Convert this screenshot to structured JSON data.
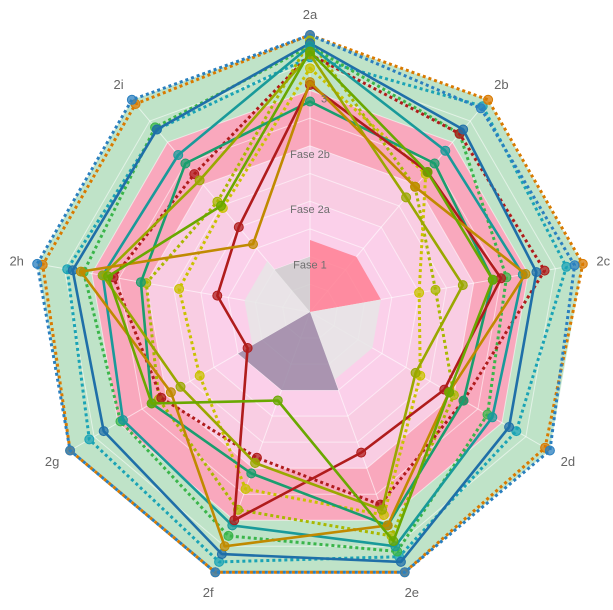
{
  "chart_data": {
    "type": "radar",
    "axes": [
      "2a",
      "2b",
      "2c",
      "2d",
      "2e",
      "2f",
      "2g",
      "2h",
      "2i"
    ],
    "max": 10,
    "levels": 10,
    "zones": [
      {
        "label": "Fase 1",
        "upto": 2,
        "color": "#f8cfe7"
      },
      {
        "label": "Fase 2a",
        "upto": 4,
        "color": "#fbd0ea"
      },
      {
        "label": "Fase 2b",
        "upto": 6,
        "color": "#f9cde3"
      },
      {
        "label": "3",
        "upto": 8,
        "color": "#f9a8bd"
      },
      {
        "label": "",
        "upto": 10,
        "color": "#bfe3c8"
      }
    ],
    "inner_sectors": [
      {
        "from": 0,
        "to": 2,
        "value": 2.6,
        "color": "#ff7f93"
      },
      {
        "from": 2,
        "to": 4,
        "value": 2.6,
        "color": "#e6e6e6"
      },
      {
        "from": 4,
        "to": 6,
        "value": 3.0,
        "color": "#9b8aa6"
      },
      {
        "from": 6,
        "to": 8,
        "value": 2.4,
        "color": "#e6e6e6"
      },
      {
        "from": 8,
        "to": 9,
        "value": 2.0,
        "color": "#cfcfcf"
      }
    ],
    "series": [
      {
        "color": "#1aa3b5",
        "style": "dotted",
        "values": [
          9.2,
          9.7,
          9.4,
          8.6,
          9.4,
          9.6,
          9.2,
          8.9,
          8.6
        ]
      },
      {
        "color": "#d97a00",
        "style": "dotted",
        "values": [
          10.0,
          10.0,
          10.0,
          9.8,
          10.0,
          10.0,
          10.0,
          9.8,
          9.8
        ]
      },
      {
        "color": "#2a7fbf",
        "style": "dotted",
        "values": [
          10.0,
          9.6,
          9.7,
          10.0,
          10.0,
          10.0,
          10.0,
          10.0,
          10.0
        ]
      },
      {
        "color": "#3ab54a",
        "style": "dotted",
        "values": [
          9.6,
          8.4,
          7.2,
          7.4,
          9.2,
          8.6,
          7.9,
          8.3,
          8.7
        ]
      },
      {
        "color": "#a9b800",
        "style": "dotted",
        "values": [
          9.8,
          5.9,
          4.6,
          6.0,
          8.6,
          7.6,
          6.3,
          6.0,
          5.2
        ]
      },
      {
        "color": "#b01c1c",
        "style": "dotted",
        "values": [
          9.3,
          8.4,
          8.6,
          6.4,
          7.4,
          5.6,
          6.2,
          7.2,
          6.5
        ]
      },
      {
        "color": "#c9c200",
        "style": "dotted",
        "values": [
          8.8,
          6.5,
          4.0,
          4.6,
          7.8,
          6.8,
          4.6,
          4.8,
          4.9
        ]
      },
      {
        "color": "#1f6fa8",
        "style": "solid",
        "values": [
          9.7,
          8.6,
          8.3,
          8.3,
          9.6,
          9.3,
          8.6,
          8.7,
          8.6
        ]
      },
      {
        "color": "#199a9a",
        "style": "solid",
        "values": [
          9.6,
          7.6,
          7.8,
          7.6,
          9.0,
          8.2,
          7.8,
          7.6,
          7.4
        ]
      },
      {
        "color": "#1a9e6e",
        "style": "solid",
        "values": [
          7.6,
          7.0,
          6.7,
          6.4,
          8.2,
          6.2,
          6.6,
          6.2,
          7.0
        ]
      },
      {
        "color": "#b01c1c",
        "style": "solid",
        "values": [
          8.2,
          6.6,
          7.0,
          5.6,
          5.4,
          8.0,
          2.6,
          3.4,
          4.0
        ]
      },
      {
        "color": "#9aa800",
        "style": "solid",
        "values": [
          9.3,
          5.4,
          5.6,
          4.4,
          7.6,
          5.8,
          5.4,
          7.6,
          6.2
        ]
      },
      {
        "color": "#c08a00",
        "style": "solid",
        "values": [
          8.3,
          5.9,
          7.9,
          5.8,
          8.2,
          9.0,
          5.8,
          8.4,
          3.2
        ]
      },
      {
        "color": "#6aa800",
        "style": "solid",
        "values": [
          9.4,
          6.6,
          6.7,
          5.8,
          8.8,
          3.4,
          6.6,
          7.4,
          5.0
        ]
      }
    ]
  }
}
